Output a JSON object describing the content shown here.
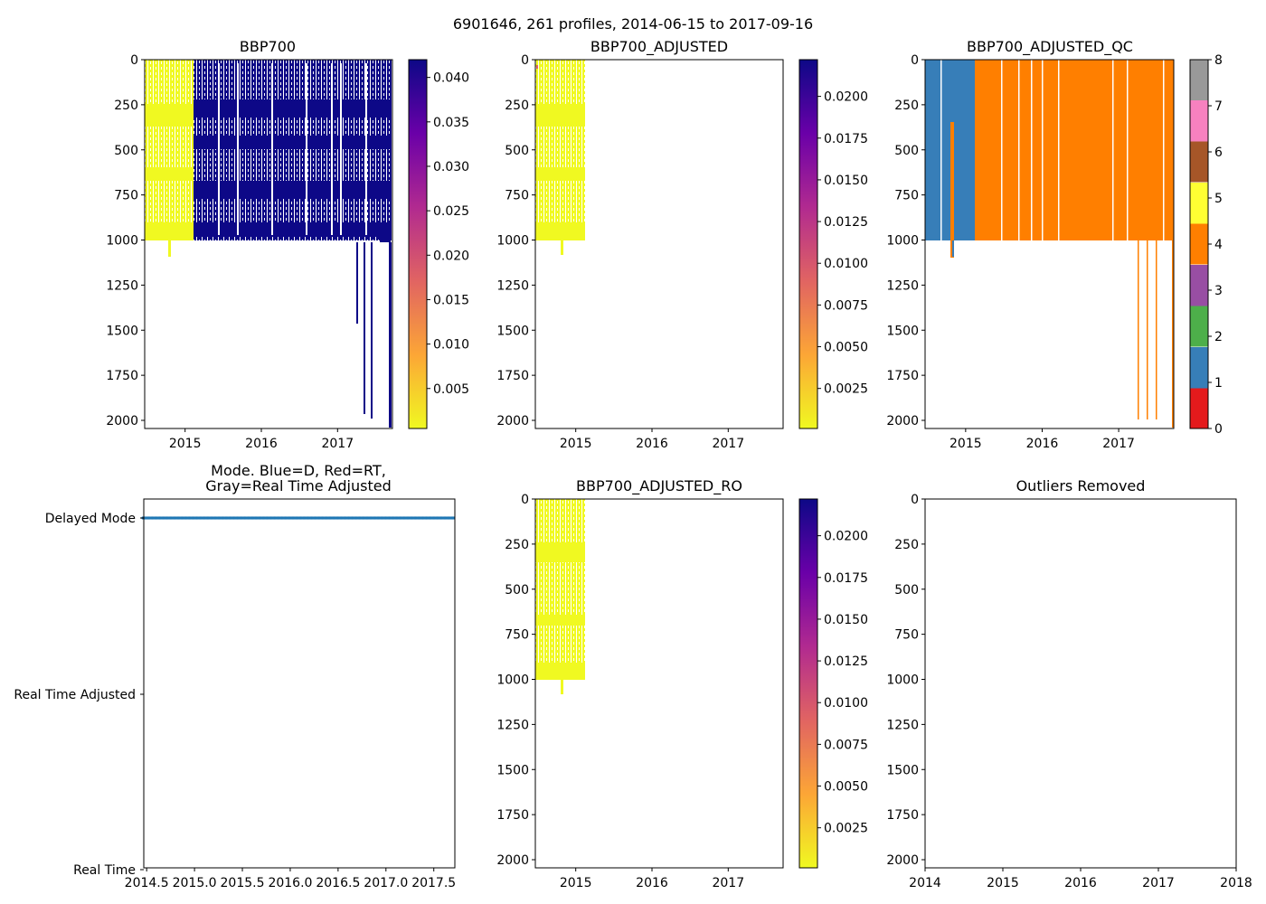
{
  "suptitle": "6901646, 261 profiles, 2014-06-15 to 2017-09-16",
  "colors": {
    "plasma": [
      "#f0f921",
      "#fca636",
      "#e16462",
      "#b12a90",
      "#6a00a8",
      "#0d0887"
    ],
    "qc": [
      "#e41a1c",
      "#377eb8",
      "#4daf4a",
      "#984ea3",
      "#ff7f00",
      "#ffff33",
      "#a65628",
      "#f781bf",
      "#999999"
    ],
    "mode_point": "#1f77b4"
  },
  "chart_data": [
    {
      "type": "heatmap",
      "title": "BBP700",
      "xlabel": "",
      "ylabel": "",
      "x_ticks": [
        "2015",
        "2016",
        "2017"
      ],
      "y_ticks": [
        "0",
        "250",
        "500",
        "750",
        "1000",
        "1250",
        "1500",
        "1750",
        "2000"
      ],
      "ylim": [
        2025,
        0
      ],
      "colorbar": {
        "min": 0.0005,
        "max": 0.042,
        "ticks": [
          "0.005",
          "0.010",
          "0.015",
          "0.020",
          "0.025",
          "0.030",
          "0.035",
          "0.040"
        ],
        "colormap": "plasma"
      },
      "notes": "Low values (yellow) for mid-2014 to early 2015 profiles in upper 1000 dbar; high values (dark blue) thereafter; a few deep profiles to 2000 dbar in 2017"
    },
    {
      "type": "heatmap",
      "title": "BBP700_ADJUSTED",
      "x_ticks": [
        "2015",
        "2016",
        "2017"
      ],
      "y_ticks": [
        "0",
        "250",
        "500",
        "750",
        "1000",
        "1250",
        "1500",
        "1750",
        "2000"
      ],
      "ylim": [
        2025,
        0
      ],
      "colorbar": {
        "min": 0.0001,
        "max": 0.0222,
        "ticks": [
          "0.0025",
          "0.0050",
          "0.0075",
          "0.0100",
          "0.0125",
          "0.0150",
          "0.0175",
          "0.0200"
        ],
        "colormap": "plasma"
      },
      "notes": "Only mid-2014 to early 2015 profiles present, upper ~1000 dbar, low values"
    },
    {
      "type": "heatmap",
      "title": "BBP700_ADJUSTED_QC",
      "x_ticks": [
        "2015",
        "2016",
        "2017"
      ],
      "y_ticks": [
        "0",
        "250",
        "500",
        "750",
        "1000",
        "1250",
        "1500",
        "1750",
        "2000"
      ],
      "ylim": [
        2025,
        0
      ],
      "colorbar": {
        "min": 0,
        "max": 8,
        "ticks": [
          "0",
          "1",
          "2",
          "3",
          "4",
          "5",
          "6",
          "7",
          "8"
        ],
        "colormap": "qc"
      },
      "notes": "QC flag 1 (blue) for profiles before early 2015, QC flag 4 (orange) afterwards"
    },
    {
      "type": "scatter",
      "title": "Mode. Blue=D, Red=RT,\nGray=Real Time Adjusted",
      "x_ticks": [
        "2014.5",
        "2015.0",
        "2015.5",
        "2016.0",
        "2016.5",
        "2017.0",
        "2017.5"
      ],
      "xlim": [
        2014.47,
        2017.72
      ],
      "y_ticks": [
        "Delayed Mode",
        "Real Time Adjusted",
        "Real Time"
      ],
      "series": [
        {
          "name": "Delayed Mode",
          "y": 2,
          "x_range": [
            2014.46,
            2017.71
          ]
        }
      ]
    },
    {
      "type": "heatmap",
      "title": "BBP700_ADJUSTED_RO",
      "x_ticks": [
        "2015",
        "2016",
        "2017"
      ],
      "y_ticks": [
        "0",
        "250",
        "500",
        "750",
        "1000",
        "1250",
        "1500",
        "1750",
        "2000"
      ],
      "ylim": [
        2025,
        0
      ],
      "colorbar": {
        "min": 0.0001,
        "max": 0.0222,
        "ticks": [
          "0.0025",
          "0.0050",
          "0.0075",
          "0.0100",
          "0.0125",
          "0.0150",
          "0.0175",
          "0.0200"
        ],
        "colormap": "plasma"
      },
      "notes": "Same as BBP700_ADJUSTED with outliers removed"
    },
    {
      "type": "scatter",
      "title": "Outliers Removed",
      "x_ticks": [
        "2014",
        "2015",
        "2016",
        "2017",
        "2018"
      ],
      "xlim": [
        2014,
        2018
      ],
      "y_ticks": [
        "0",
        "250",
        "500",
        "750",
        "1000",
        "1250",
        "1500",
        "1750",
        "2000"
      ],
      "ylim": [
        2025,
        0
      ],
      "series": []
    }
  ]
}
